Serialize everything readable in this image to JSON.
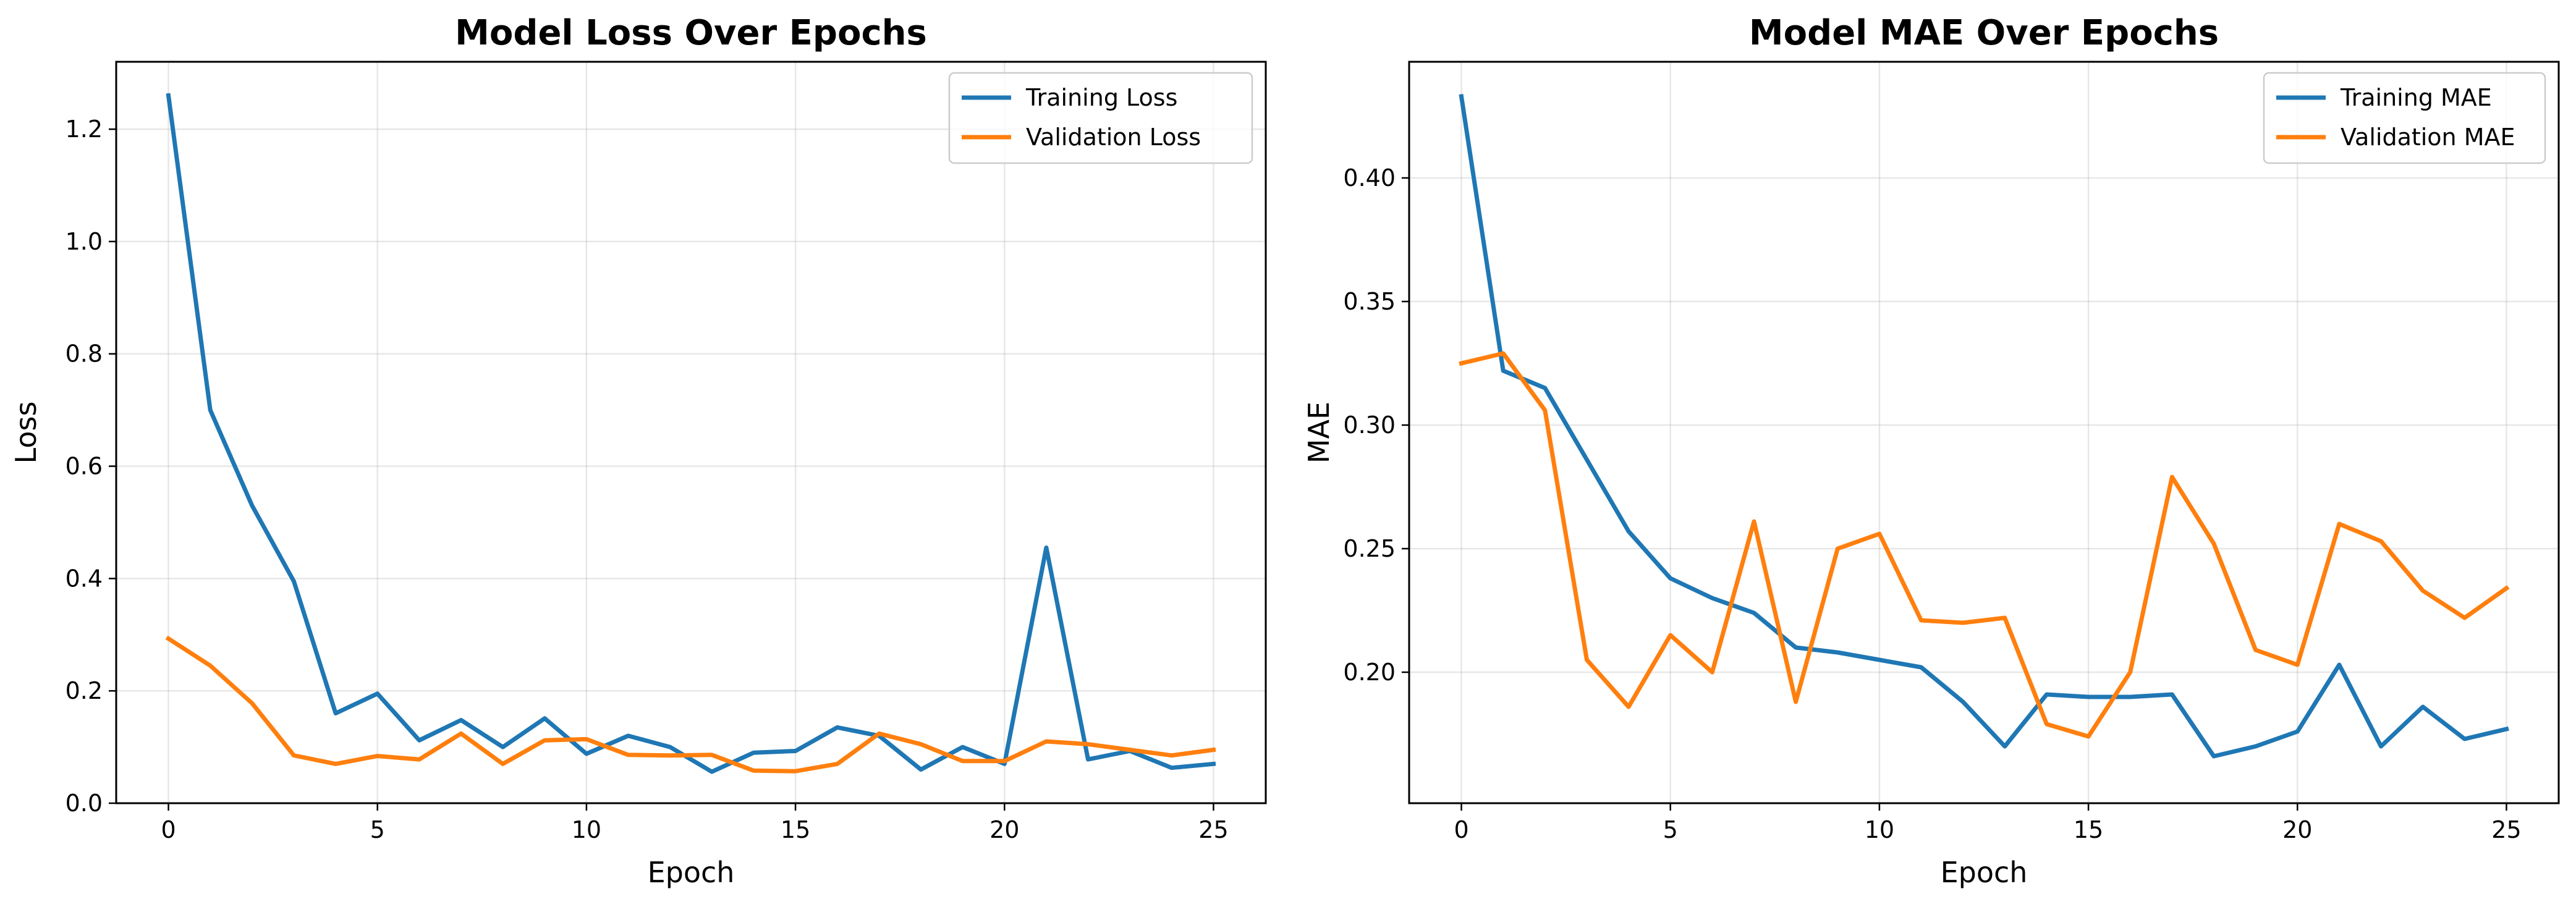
{
  "colors": {
    "training": "#1f77b4",
    "validation": "#ff7f0e"
  },
  "chart_data": [
    {
      "type": "line",
      "title": "Model Loss Over Epochs",
      "xlabel": "Epoch",
      "ylabel": "Loss",
      "xlim": [
        -1.25,
        26.25
      ],
      "ylim": [
        0,
        1.32
      ],
      "xticks": [
        0,
        5,
        10,
        15,
        20,
        25
      ],
      "xtick_labels": [
        "0",
        "5",
        "10",
        "15",
        "20",
        "25"
      ],
      "yticks": [
        0,
        0.2,
        0.4,
        0.6,
        0.8,
        1.0,
        1.2
      ],
      "ytick_labels": [
        "0.0",
        "0.2",
        "0.4",
        "0.6",
        "0.8",
        "1.0",
        "1.2"
      ],
      "grid": true,
      "legend": "top-right",
      "x": [
        0,
        1,
        2,
        3,
        4,
        5,
        6,
        7,
        8,
        9,
        10,
        11,
        12,
        13,
        14,
        15,
        16,
        17,
        18,
        19,
        20,
        21,
        22,
        23,
        24,
        25
      ],
      "series": [
        {
          "name": "Training Loss",
          "color": "#1f77b4",
          "values": [
            1.26,
            0.7,
            0.53,
            0.395,
            0.16,
            0.195,
            0.112,
            0.148,
            0.1,
            0.151,
            0.088,
            0.12,
            0.1,
            0.056,
            0.09,
            0.093,
            0.135,
            0.12,
            0.06,
            0.1,
            0.07,
            0.455,
            0.078,
            0.093,
            0.063,
            0.07
          ]
        },
        {
          "name": "Validation Loss",
          "color": "#ff7f0e",
          "values": [
            0.293,
            0.245,
            0.178,
            0.085,
            0.07,
            0.084,
            0.078,
            0.124,
            0.07,
            0.112,
            0.114,
            0.086,
            0.085,
            0.086,
            0.058,
            0.057,
            0.07,
            0.124,
            0.105,
            0.075,
            0.075,
            0.11,
            0.105,
            0.095,
            0.085,
            0.095
          ]
        }
      ]
    },
    {
      "type": "line",
      "title": "Model MAE Over Epochs",
      "xlabel": "Epoch",
      "ylabel": "MAE",
      "xlim": [
        -1.25,
        26.25
      ],
      "ylim": [
        0.147,
        0.447
      ],
      "xticks": [
        0,
        5,
        10,
        15,
        20,
        25
      ],
      "xtick_labels": [
        "0",
        "5",
        "10",
        "15",
        "20",
        "25"
      ],
      "yticks": [
        0.2,
        0.25,
        0.3,
        0.35,
        0.4
      ],
      "ytick_labels": [
        "0.20",
        "0.25",
        "0.30",
        "0.35",
        "0.40"
      ],
      "grid": true,
      "legend": "top-right",
      "x": [
        0,
        1,
        2,
        3,
        4,
        5,
        6,
        7,
        8,
        9,
        10,
        11,
        12,
        13,
        14,
        15,
        16,
        17,
        18,
        19,
        20,
        21,
        22,
        23,
        24,
        25
      ],
      "series": [
        {
          "name": "Training MAE",
          "color": "#1f77b4",
          "values": [
            0.433,
            0.322,
            0.315,
            0.286,
            0.257,
            0.238,
            0.23,
            0.224,
            0.21,
            0.208,
            0.205,
            0.202,
            0.188,
            0.17,
            0.191,
            0.19,
            0.19,
            0.191,
            0.166,
            0.17,
            0.176,
            0.203,
            0.17,
            0.186,
            0.173,
            0.177
          ]
        },
        {
          "name": "Validation MAE",
          "color": "#ff7f0e",
          "values": [
            0.325,
            0.329,
            0.306,
            0.205,
            0.186,
            0.215,
            0.2,
            0.261,
            0.188,
            0.25,
            0.256,
            0.221,
            0.22,
            0.222,
            0.179,
            0.174,
            0.2,
            0.279,
            0.252,
            0.209,
            0.203,
            0.26,
            0.253,
            0.233,
            0.222,
            0.234
          ]
        }
      ]
    }
  ]
}
